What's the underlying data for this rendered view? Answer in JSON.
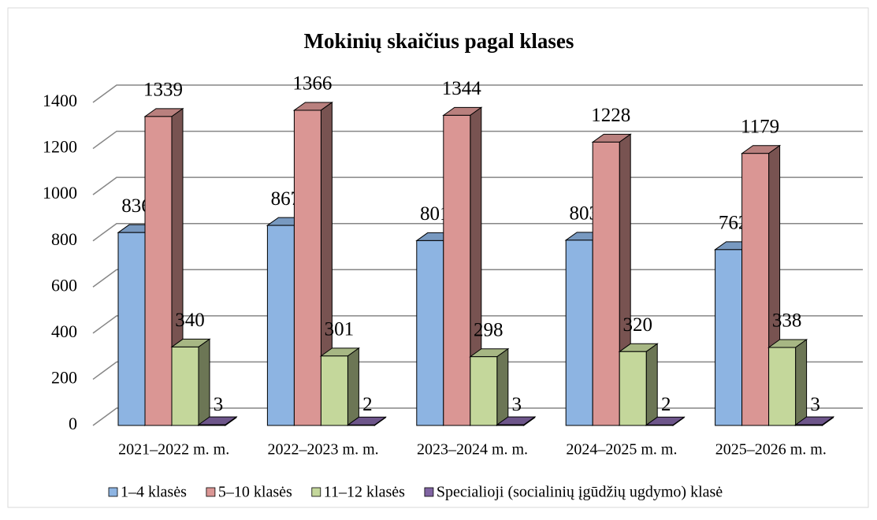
{
  "chart_data": {
    "type": "bar3d",
    "title": "Mokinių skaičius pagal klases",
    "categories": [
      "2021–2022 m. m.",
      "2022–2023 m. m.",
      "2023–2024 m. m.",
      "2024–2025 m. m.",
      "2025–2026 m. m."
    ],
    "series": [
      {
        "name": "1–4 klasės",
        "color": "#8db4e2",
        "values": [
          836,
          867,
          801,
          803,
          762
        ]
      },
      {
        "name": "5–10 klasės",
        "color": "#da9694",
        "values": [
          1339,
          1366,
          1344,
          1228,
          1179
        ]
      },
      {
        "name": "11–12 klasės",
        "color": "#c4d79b",
        "values": [
          340,
          301,
          298,
          320,
          338
        ]
      },
      {
        "name": "Specialioji (socialinių įgūdžių ugdymo) klasė",
        "color": "#8064a2",
        "values": [
          3,
          2,
          3,
          2,
          3
        ]
      }
    ],
    "ylim": [
      0,
      1400
    ],
    "yticks": [
      0,
      200,
      400,
      600,
      800,
      1000,
      1200,
      1400
    ],
    "grid": true,
    "legend": "bottom"
  }
}
